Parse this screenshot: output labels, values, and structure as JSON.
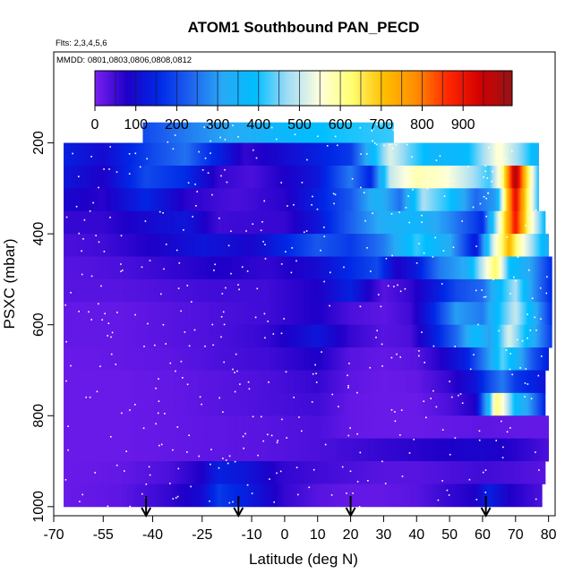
{
  "chart_data": {
    "type": "heatmap",
    "title": "ATOM1 Southbound PAN_PECD",
    "flights_note": "Flts: 2,3,4,5,6",
    "dates_note": "MMDD: 0801,0803,0806,0808,0812",
    "xlabel": "Latitude (deg N)",
    "ylabel": "PSXC (mbar)",
    "xlim": [
      -70,
      82
    ],
    "ylim": [
      1020,
      0
    ],
    "y_reversed": true,
    "x_ticks": [
      -70,
      -55,
      -40,
      -25,
      -10,
      0,
      10,
      20,
      30,
      40,
      50,
      60,
      70,
      80
    ],
    "x_tick_labels": [
      "-70",
      "-55",
      "-40",
      "-25",
      "-10",
      "0",
      "10",
      "20",
      "30",
      "40",
      "50",
      "60",
      "70",
      "80"
    ],
    "y_ticks": [
      200,
      400,
      600,
      800,
      1000
    ],
    "y_tick_labels": [
      "200",
      "400",
      "600",
      "800",
      "1000"
    ],
    "colorbar": {
      "range": [
        0,
        1020
      ],
      "ticks": [
        0,
        100,
        200,
        300,
        400,
        500,
        600,
        700,
        800,
        900
      ],
      "tick_labels": [
        "0",
        "100",
        "200",
        "300",
        "400",
        "500",
        "600",
        "700",
        "800",
        "900"
      ],
      "colors": [
        "#7B20F0",
        "#1E00C8",
        "#0028E6",
        "#1E64F0",
        "#28AAF5",
        "#00BEFF",
        "#A0DCF5",
        "#FFFFDC",
        "#FFFF73",
        "#FFBE00",
        "#FF8C00",
        "#FF2800",
        "#D20000",
        "#961414"
      ]
    },
    "flight_markers_lat": [
      -42,
      -14,
      20,
      61
    ],
    "pressure_levels": [
      180,
      225,
      275,
      325,
      375,
      425,
      475,
      525,
      575,
      625,
      675,
      725,
      775,
      825,
      875,
      925,
      975
    ],
    "rows": [
      {
        "p": 180,
        "lat_min": -43,
        "lat_max": 33,
        "nodes": [
          [
            -43,
            200
          ],
          [
            -30,
            260
          ],
          [
            -15,
            320
          ],
          [
            0,
            370
          ],
          [
            15,
            400
          ],
          [
            33,
            420
          ]
        ]
      },
      {
        "p": 225,
        "lat_min": -67,
        "lat_max": 77,
        "nodes": [
          [
            -67,
            140
          ],
          [
            -55,
            100
          ],
          [
            -40,
            200
          ],
          [
            -30,
            250
          ],
          [
            -25,
            190
          ],
          [
            -12,
            60
          ],
          [
            0,
            100
          ],
          [
            10,
            140
          ],
          [
            20,
            180
          ],
          [
            27,
            380
          ],
          [
            32,
            520
          ],
          [
            38,
            440
          ],
          [
            45,
            360
          ],
          [
            55,
            380
          ],
          [
            65,
            560
          ],
          [
            72,
            450
          ],
          [
            77,
            350
          ]
        ]
      },
      {
        "p": 275,
        "lat_min": -67,
        "lat_max": 77,
        "nodes": [
          [
            -67,
            120
          ],
          [
            -55,
            80
          ],
          [
            -42,
            200
          ],
          [
            -30,
            160
          ],
          [
            -20,
            60
          ],
          [
            -10,
            40
          ],
          [
            0,
            80
          ],
          [
            10,
            120
          ],
          [
            20,
            260
          ],
          [
            26,
            150
          ],
          [
            32,
            500
          ],
          [
            40,
            580
          ],
          [
            48,
            560
          ],
          [
            55,
            500
          ],
          [
            62,
            420
          ],
          [
            66,
            600
          ],
          [
            70,
            1000
          ],
          [
            73,
            700
          ],
          [
            77,
            400
          ]
        ]
      },
      {
        "p": 325,
        "lat_min": -67,
        "lat_max": 77,
        "nodes": [
          [
            -67,
            90
          ],
          [
            -55,
            70
          ],
          [
            -42,
            150
          ],
          [
            -30,
            70
          ],
          [
            -15,
            40
          ],
          [
            0,
            70
          ],
          [
            10,
            140
          ],
          [
            20,
            220
          ],
          [
            28,
            350
          ],
          [
            35,
            250
          ],
          [
            42,
            480
          ],
          [
            50,
            400
          ],
          [
            58,
            240
          ],
          [
            64,
            300
          ],
          [
            68,
            760
          ],
          [
            70,
            920
          ],
          [
            73,
            680
          ],
          [
            77,
            400
          ]
        ]
      },
      {
        "p": 375,
        "lat_min": -67,
        "lat_max": 79,
        "nodes": [
          [
            -67,
            60
          ],
          [
            -55,
            60
          ],
          [
            -40,
            100
          ],
          [
            -30,
            120
          ],
          [
            -20,
            50
          ],
          [
            0,
            60
          ],
          [
            10,
            120
          ],
          [
            20,
            230
          ],
          [
            30,
            330
          ],
          [
            40,
            360
          ],
          [
            50,
            280
          ],
          [
            60,
            160
          ],
          [
            66,
            620
          ],
          [
            70,
            900
          ],
          [
            74,
            600
          ],
          [
            79,
            380
          ]
        ]
      },
      {
        "p": 425,
        "lat_min": -67,
        "lat_max": 80,
        "nodes": [
          [
            -67,
            40
          ],
          [
            -55,
            50
          ],
          [
            -40,
            80
          ],
          [
            -25,
            120
          ],
          [
            -10,
            90
          ],
          [
            0,
            150
          ],
          [
            10,
            220
          ],
          [
            20,
            180
          ],
          [
            30,
            260
          ],
          [
            40,
            420
          ],
          [
            50,
            320
          ],
          [
            58,
            120
          ],
          [
            63,
            500
          ],
          [
            68,
            720
          ],
          [
            72,
            560
          ],
          [
            80,
            330
          ]
        ]
      },
      {
        "p": 475,
        "lat_min": -67,
        "lat_max": 81,
        "nodes": [
          [
            -67,
            30
          ],
          [
            -50,
            40
          ],
          [
            -35,
            60
          ],
          [
            -20,
            80
          ],
          [
            -5,
            60
          ],
          [
            10,
            100
          ],
          [
            20,
            160
          ],
          [
            28,
            200
          ],
          [
            34,
            80
          ],
          [
            40,
            130
          ],
          [
            47,
            260
          ],
          [
            55,
            320
          ],
          [
            60,
            500
          ],
          [
            64,
            640
          ],
          [
            68,
            400
          ],
          [
            75,
            300
          ],
          [
            81,
            160
          ]
        ]
      },
      {
        "p": 525,
        "lat_min": -67,
        "lat_max": 81,
        "nodes": [
          [
            -67,
            30
          ],
          [
            -50,
            30
          ],
          [
            -35,
            40
          ],
          [
            -20,
            50
          ],
          [
            -5,
            50
          ],
          [
            10,
            80
          ],
          [
            20,
            140
          ],
          [
            30,
            30
          ],
          [
            38,
            60
          ],
          [
            45,
            120
          ],
          [
            52,
            200
          ],
          [
            60,
            240
          ],
          [
            66,
            400
          ],
          [
            70,
            480
          ],
          [
            75,
            300
          ],
          [
            81,
            150
          ]
        ]
      },
      {
        "p": 575,
        "lat_min": -67,
        "lat_max": 81,
        "nodes": [
          [
            -67,
            20
          ],
          [
            -50,
            20
          ],
          [
            -35,
            30
          ],
          [
            -20,
            40
          ],
          [
            -5,
            50
          ],
          [
            10,
            80
          ],
          [
            20,
            40
          ],
          [
            30,
            25
          ],
          [
            38,
            50
          ],
          [
            45,
            150
          ],
          [
            52,
            300
          ],
          [
            60,
            260
          ],
          [
            66,
            420
          ],
          [
            70,
            500
          ],
          [
            75,
            360
          ],
          [
            81,
            160
          ]
        ]
      },
      {
        "p": 625,
        "lat_min": -67,
        "lat_max": 81,
        "nodes": [
          [
            -67,
            20
          ],
          [
            -50,
            20
          ],
          [
            -35,
            30
          ],
          [
            -20,
            40
          ],
          [
            -5,
            60
          ],
          [
            10,
            120
          ],
          [
            20,
            60
          ],
          [
            30,
            30
          ],
          [
            38,
            40
          ],
          [
            45,
            130
          ],
          [
            52,
            240
          ],
          [
            58,
            380
          ],
          [
            62,
            300
          ],
          [
            68,
            520
          ],
          [
            72,
            420
          ],
          [
            81,
            180
          ]
        ]
      },
      {
        "p": 675,
        "lat_min": -67,
        "lat_max": 80,
        "nodes": [
          [
            -67,
            15
          ],
          [
            -50,
            20
          ],
          [
            -35,
            25
          ],
          [
            -20,
            40
          ],
          [
            -5,
            50
          ],
          [
            10,
            80
          ],
          [
            20,
            30
          ],
          [
            30,
            20
          ],
          [
            40,
            30
          ],
          [
            48,
            80
          ],
          [
            55,
            140
          ],
          [
            62,
            300
          ],
          [
            66,
            440
          ],
          [
            70,
            360
          ],
          [
            75,
            220
          ],
          [
            80,
            140
          ]
        ]
      },
      {
        "p": 725,
        "lat_min": -67,
        "lat_max": 79,
        "nodes": [
          [
            -67,
            15
          ],
          [
            -50,
            15
          ],
          [
            -35,
            20
          ],
          [
            -20,
            30
          ],
          [
            -5,
            40
          ],
          [
            10,
            60
          ],
          [
            20,
            25
          ],
          [
            30,
            15
          ],
          [
            40,
            20
          ],
          [
            50,
            60
          ],
          [
            58,
            120
          ],
          [
            62,
            200
          ],
          [
            66,
            260
          ],
          [
            70,
            180
          ],
          [
            79,
            120
          ]
        ]
      },
      {
        "p": 775,
        "lat_min": -67,
        "lat_max": 79,
        "nodes": [
          [
            -67,
            15
          ],
          [
            -50,
            15
          ],
          [
            -35,
            20
          ],
          [
            -20,
            30
          ],
          [
            -5,
            40
          ],
          [
            10,
            50
          ],
          [
            20,
            20
          ],
          [
            30,
            15
          ],
          [
            40,
            15
          ],
          [
            50,
            40
          ],
          [
            58,
            80
          ],
          [
            62,
            380
          ],
          [
            64,
            620
          ],
          [
            66,
            560
          ],
          [
            70,
            380
          ],
          [
            74,
            300
          ],
          [
            79,
            150
          ]
        ]
      },
      {
        "p": 825,
        "lat_min": -67,
        "lat_max": 80,
        "nodes": [
          [
            -67,
            15
          ],
          [
            -50,
            15
          ],
          [
            -35,
            20
          ],
          [
            -20,
            25
          ],
          [
            -5,
            30
          ],
          [
            10,
            40
          ],
          [
            20,
            20
          ],
          [
            30,
            15
          ],
          [
            40,
            15
          ],
          [
            50,
            20
          ],
          [
            60,
            25
          ],
          [
            70,
            20
          ],
          [
            80,
            20
          ]
        ]
      },
      {
        "p": 875,
        "lat_min": -67,
        "lat_max": 80,
        "nodes": [
          [
            -67,
            15
          ],
          [
            -50,
            15
          ],
          [
            -35,
            20
          ],
          [
            -20,
            25
          ],
          [
            -5,
            30
          ],
          [
            10,
            40
          ],
          [
            20,
            50
          ],
          [
            30,
            60
          ],
          [
            40,
            70
          ],
          [
            50,
            80
          ],
          [
            60,
            90
          ],
          [
            70,
            70
          ],
          [
            80,
            40
          ]
        ]
      },
      {
        "p": 925,
        "lat_min": -67,
        "lat_max": 79,
        "nodes": [
          [
            -67,
            15
          ],
          [
            -50,
            20
          ],
          [
            -35,
            40
          ],
          [
            -25,
            80
          ],
          [
            -20,
            140
          ],
          [
            -12,
            120
          ],
          [
            0,
            60
          ],
          [
            10,
            50
          ],
          [
            20,
            40
          ],
          [
            30,
            30
          ],
          [
            40,
            30
          ],
          [
            50,
            40
          ],
          [
            60,
            50
          ],
          [
            70,
            40
          ],
          [
            79,
            30
          ]
        ]
      },
      {
        "p": 975,
        "lat_min": -67,
        "lat_max": 78,
        "nodes": [
          [
            -67,
            15
          ],
          [
            -50,
            25
          ],
          [
            -35,
            60
          ],
          [
            -25,
            100
          ],
          [
            -20,
            180
          ],
          [
            -12,
            140
          ],
          [
            0,
            60
          ],
          [
            10,
            30
          ],
          [
            20,
            20
          ],
          [
            30,
            20
          ],
          [
            40,
            30
          ],
          [
            50,
            60
          ],
          [
            58,
            80
          ],
          [
            62,
            140
          ],
          [
            68,
            80
          ],
          [
            78,
            40
          ]
        ]
      }
    ]
  }
}
